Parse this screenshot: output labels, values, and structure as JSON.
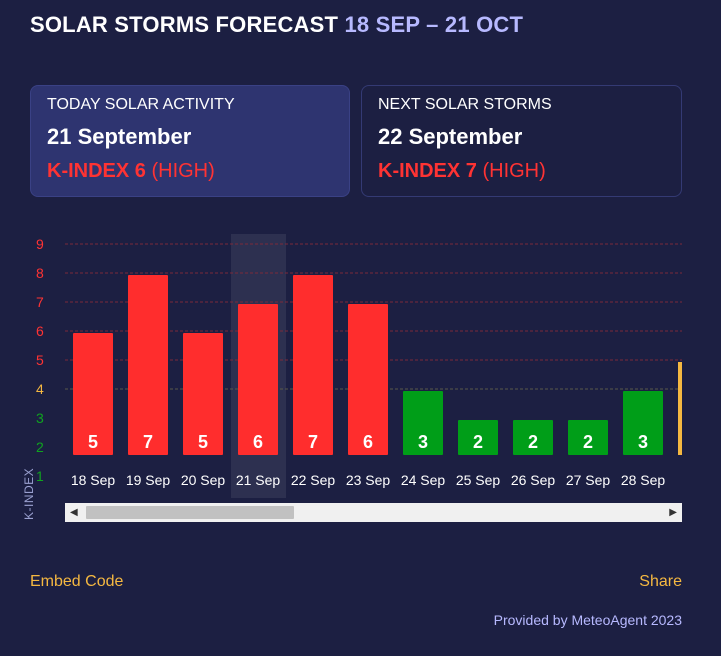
{
  "header": {
    "title": "SOLAR STORMS FORECAST",
    "date_range": "18 SEP – 21 OCT"
  },
  "cards": {
    "today": {
      "label": "TODAY SOLAR ACTIVITY",
      "date": "21 September",
      "kindex": "K-INDEX 6",
      "level": "(HIGH)"
    },
    "next": {
      "label": "NEXT SOLAR STORMS",
      "date": "22 September",
      "kindex": "K-INDEX 7",
      "level": "(HIGH)"
    }
  },
  "chart_data": {
    "type": "bar",
    "title": "",
    "ylabel": "K-INDEX",
    "ylim": [
      1,
      9
    ],
    "yticks": [
      1,
      2,
      3,
      4,
      5,
      6,
      7,
      8,
      9
    ],
    "categories": [
      "18 Sep",
      "19 Sep",
      "20 Sep",
      "21 Sep",
      "22 Sep",
      "23 Sep",
      "24 Sep",
      "25 Sep",
      "26 Sep",
      "27 Sep",
      "28 Sep"
    ],
    "values": [
      5,
      7,
      5,
      6,
      7,
      6,
      3,
      2,
      2,
      2,
      3
    ],
    "highlighted": "21 Sep",
    "colors": {
      "high": "#ff2d2d",
      "moderate": "#f5b841",
      "low": "#009e18",
      "tick_high": "#ff3333",
      "tick_moderate": "#f5b841",
      "tick_low": "#0fa41f",
      "grid": "#7a2a3a"
    }
  },
  "scroll": {
    "left_arrow": "◀",
    "right_arrow": "▶"
  },
  "footer": {
    "embed": "Embed Code",
    "share": "Share",
    "credit": "Provided by MeteoAgent 2023"
  }
}
